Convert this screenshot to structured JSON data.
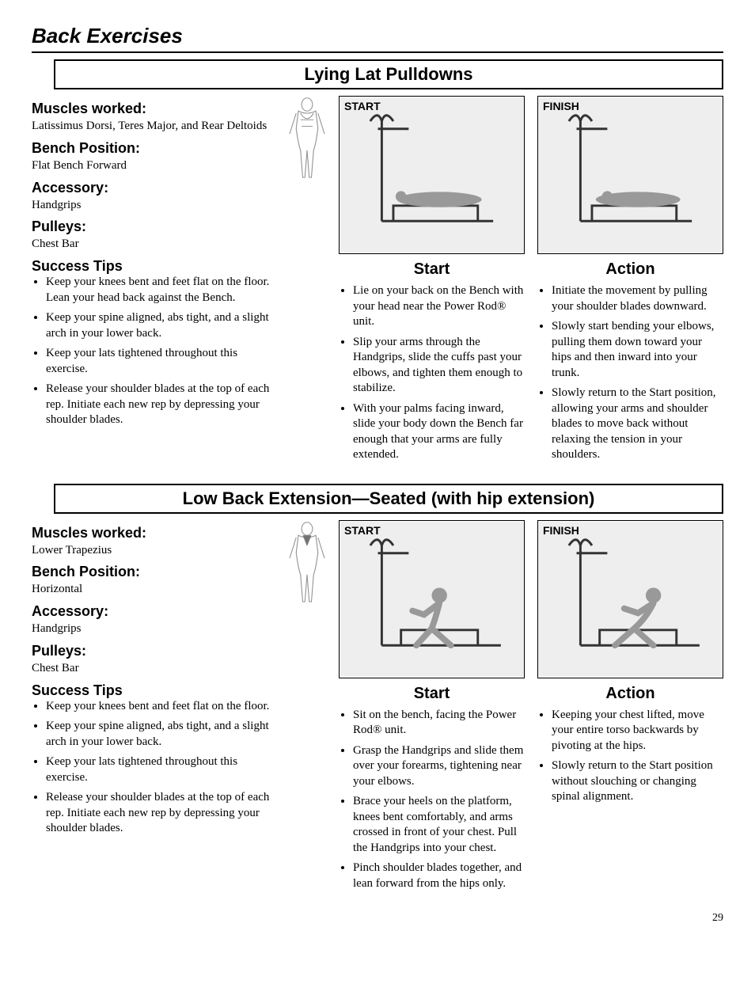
{
  "page": {
    "header": "Back Exercises",
    "number": "29"
  },
  "exercises": [
    {
      "title": "Lying Lat Pulldowns",
      "muscles_label": "Muscles worked:",
      "muscles": "Latissimus Dorsi, Teres Major, and Rear Deltoids",
      "bench_label": "Bench Position:",
      "bench": "Flat Bench Forward",
      "accessory_label": "Accessory:",
      "accessory": "Handgrips",
      "pulleys_label": "Pulleys:",
      "pulleys": "Chest Bar",
      "tips_label": "Success Tips",
      "tips": [
        "Keep your knees bent and feet flat on the floor. Lean your head back against the Bench.",
        "Keep your spine aligned, abs tight, and a slight arch in your lower back.",
        "Keep your lats tightened throughout this exercise.",
        "Release your shoulder blades at the top of each rep. Initiate each new rep by depressing your shoulder blades."
      ],
      "start_img_label": "START",
      "finish_img_label": "FINISH",
      "start_title": "Start",
      "action_title": "Action",
      "start_steps": [
        "Lie on your back on the Bench with your head near the Power Rod® unit.",
        "Slip your arms through the Handgrips, slide the cuffs past your elbows, and tighten them enough to stabilize.",
        "With your palms facing inward, slide your body down the Bench far enough that your arms are fully extended."
      ],
      "action_steps": [
        "Initiate the movement by pulling your shoulder blades downward.",
        "Slowly start bending your elbows, pulling them down toward your hips and then inward into your trunk.",
        "Slowly return to the Start position, allowing your arms and shoulder blades to move back without relaxing the tension in your shoulders."
      ]
    },
    {
      "title": "Low Back Extension—Seated (with hip extension)",
      "muscles_label": "Muscles worked:",
      "muscles": "Lower Trapezius",
      "bench_label": "Bench Position:",
      "bench": "Horizontal",
      "accessory_label": "Accessory:",
      "accessory": "Handgrips",
      "pulleys_label": "Pulleys:",
      "pulleys": "Chest Bar",
      "tips_label": "Success Tips",
      "tips": [
        "Keep your knees bent and feet flat on the floor.",
        "Keep your spine aligned, abs tight, and a slight arch in your lower back.",
        "Keep your lats tightened throughout this exercise.",
        "Release your shoulder blades at the top of each rep. Initiate each new rep by depressing your shoulder blades."
      ],
      "start_img_label": "START",
      "finish_img_label": "FINISH",
      "start_title": "Start",
      "action_title": "Action",
      "start_steps": [
        "Sit on the bench, facing the Power Rod® unit.",
        "Grasp the Handgrips and slide them over your forearms, tightening near your elbows.",
        "Brace your heels on the platform, knees bent comfortably, and arms crossed in front of your chest. Pull the Handgrips into your chest.",
        "Pinch shoulder blades together, and lean forward from the hips only."
      ],
      "action_steps": [
        "Keeping your chest lifted, move your entire torso backwards by pivoting at the hips.",
        "Slowly return to the Start position without slouching or changing spinal alignment."
      ]
    }
  ]
}
